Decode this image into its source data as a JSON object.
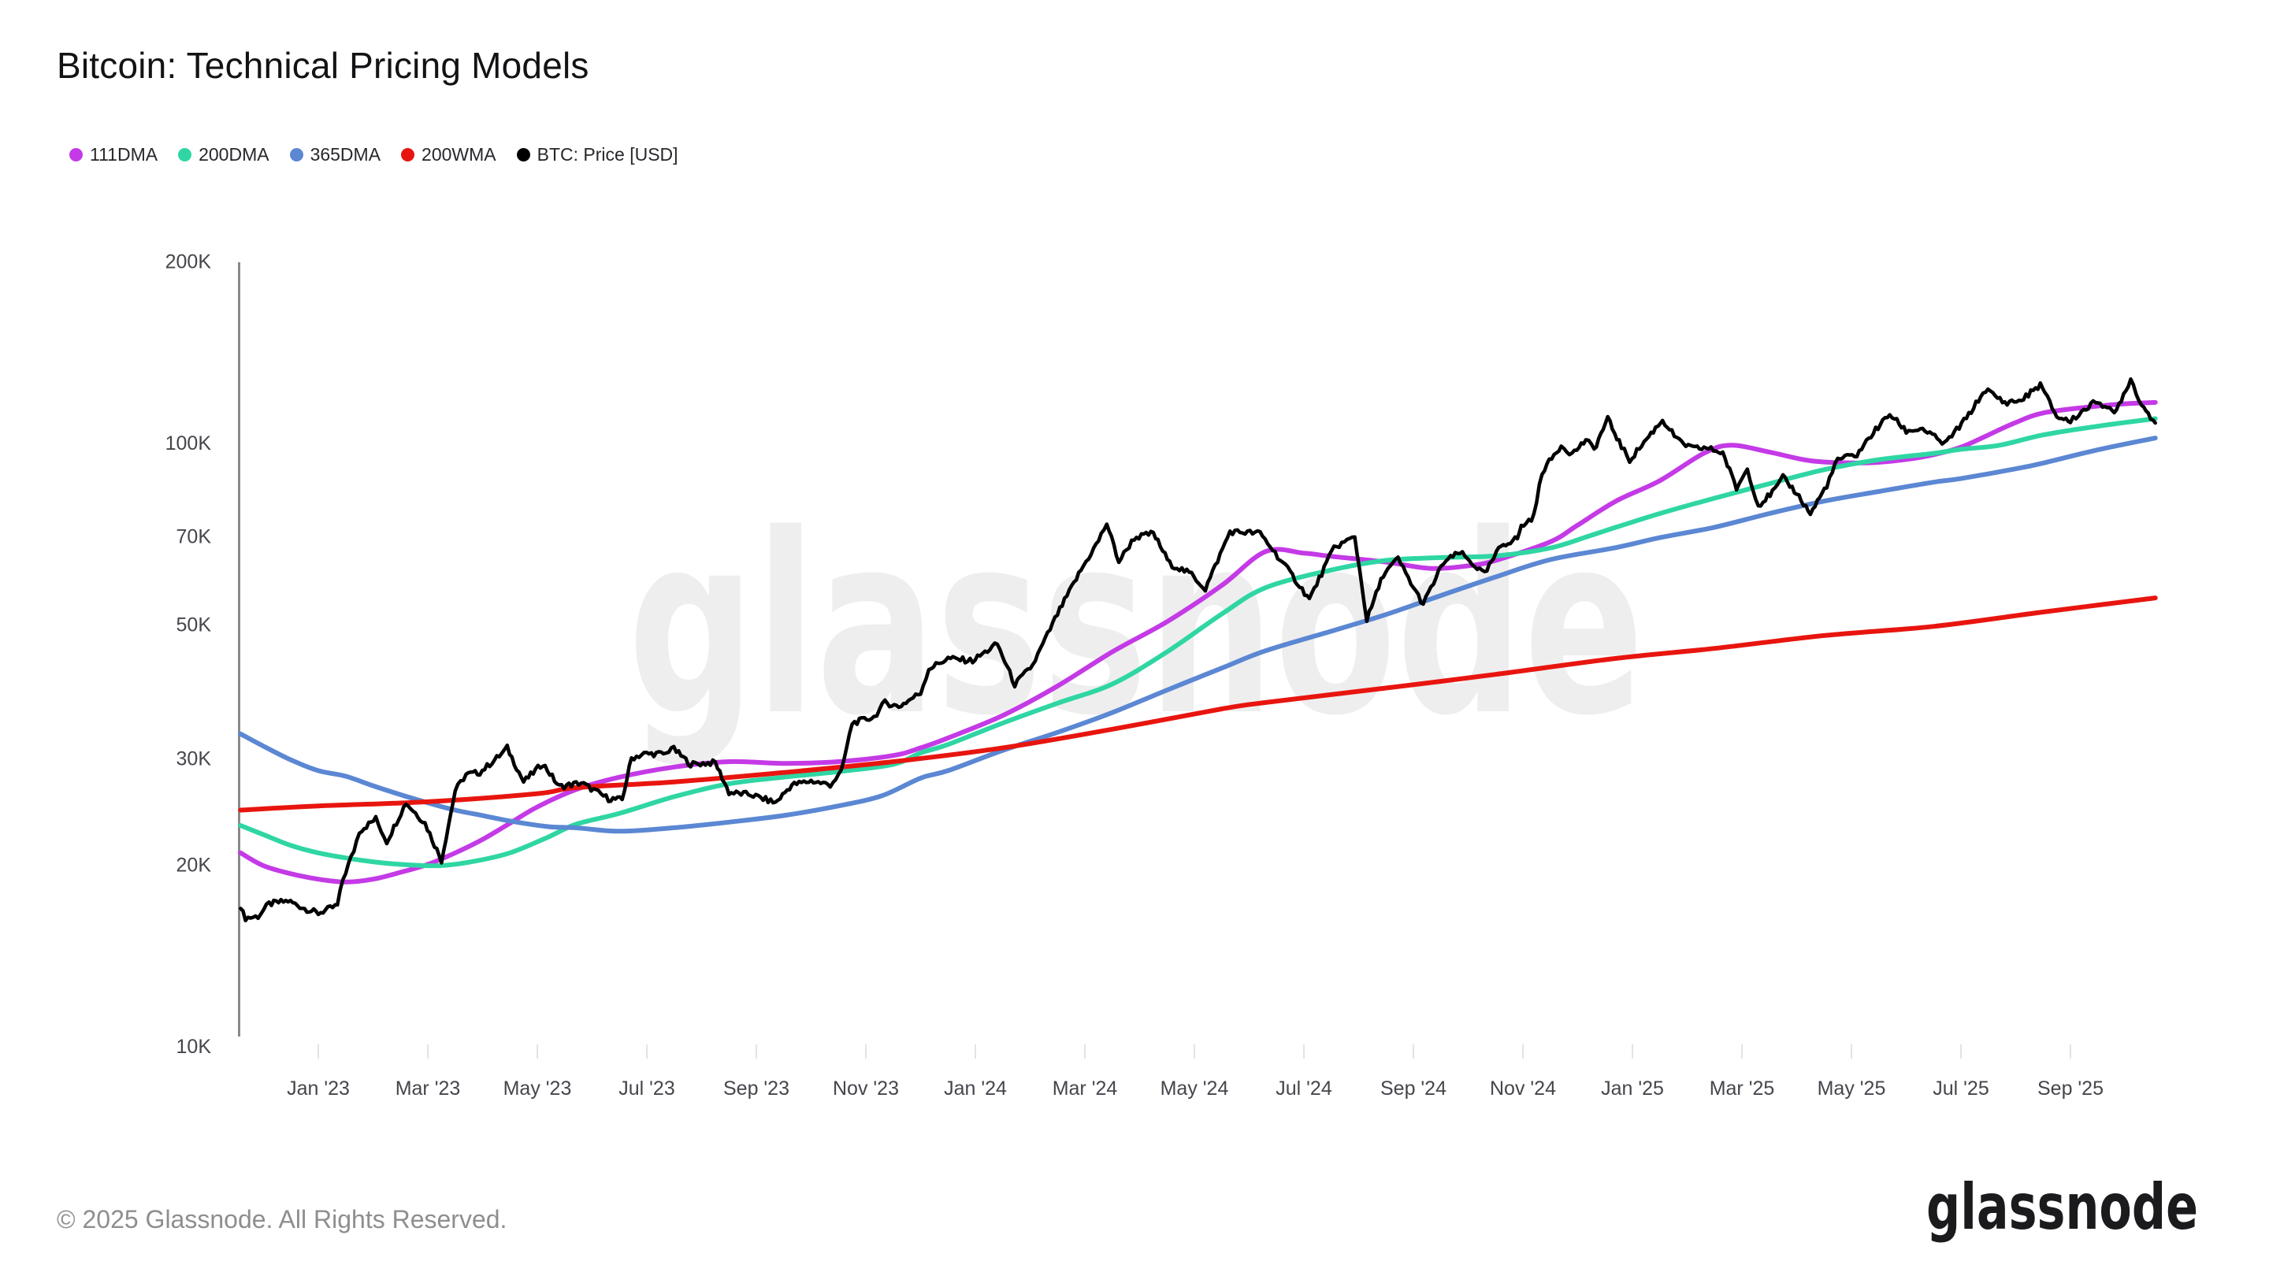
{
  "header": {
    "title": "Bitcoin: Technical Pricing Models"
  },
  "watermark": {
    "text": "glassnode"
  },
  "footer": {
    "copyright": "© 2025 Glassnode. All Rights Reserved.",
    "logo_text": "glassnode"
  },
  "chart_data": {
    "type": "line",
    "title": "Bitcoin: Technical Pricing Models",
    "legend_position": "top-left",
    "grid": "off",
    "y_axis": {
      "scale": "log",
      "unit": "USD",
      "value_unit": "thousands of USD",
      "range_k": [
        10,
        200
      ],
      "ticks": [
        {
          "value": 200,
          "label": "200K"
        },
        {
          "value": 100,
          "label": "100K"
        },
        {
          "value": 70,
          "label": "70K"
        },
        {
          "value": 50,
          "label": "50K"
        },
        {
          "value": 30,
          "label": "30K"
        },
        {
          "value": 20,
          "label": "20K"
        },
        {
          "value": 10,
          "label": "10K"
        }
      ]
    },
    "x_axis": {
      "unit": "months since 2023-01-01",
      "range_months": [
        -1.45,
        33.75
      ],
      "ticks": [
        {
          "m": 0,
          "label": "Jan '23"
        },
        {
          "m": 2,
          "label": "Mar '23"
        },
        {
          "m": 4,
          "label": "May '23"
        },
        {
          "m": 6,
          "label": "Jul '23"
        },
        {
          "m": 8,
          "label": "Sep '23"
        },
        {
          "m": 10,
          "label": "Nov '23"
        },
        {
          "m": 12,
          "label": "Jan '24"
        },
        {
          "m": 14,
          "label": "Mar '24"
        },
        {
          "m": 16,
          "label": "May '24"
        },
        {
          "m": 18,
          "label": "Jul '24"
        },
        {
          "m": 20,
          "label": "Sep '24"
        },
        {
          "m": 22,
          "label": "Nov '24"
        },
        {
          "m": 24,
          "label": "Jan '25"
        },
        {
          "m": 26,
          "label": "Mar '25"
        },
        {
          "m": 28,
          "label": "May '25"
        },
        {
          "m": 30,
          "label": "Jul '25"
        },
        {
          "m": 32,
          "label": "Sep '25"
        }
      ]
    },
    "series": [
      {
        "name": "111DMA",
        "color": "#c43ae6",
        "points": [
          [
            -1.42,
            20.9
          ],
          [
            -1.0,
            19.9
          ],
          [
            -0.5,
            19.3
          ],
          [
            0,
            18.9
          ],
          [
            0.5,
            18.7
          ],
          [
            1,
            18.9
          ],
          [
            1.5,
            19.4
          ],
          [
            2,
            20.0
          ],
          [
            2.5,
            20.9
          ],
          [
            3,
            22.0
          ],
          [
            3.5,
            23.4
          ],
          [
            4,
            24.9
          ],
          [
            4.7,
            26.6
          ],
          [
            5.5,
            27.9
          ],
          [
            6.5,
            29.0
          ],
          [
            7.5,
            29.6
          ],
          [
            8.5,
            29.4
          ],
          [
            9.5,
            29.6
          ],
          [
            10.5,
            30.3
          ],
          [
            11,
            31.2
          ],
          [
            11.5,
            32.4
          ],
          [
            12.5,
            35.3
          ],
          [
            13.5,
            39.5
          ],
          [
            14.5,
            45.0
          ],
          [
            15.5,
            50.5
          ],
          [
            16.5,
            58.0
          ],
          [
            17.3,
            66.0
          ],
          [
            18,
            65.6
          ],
          [
            18.5,
            64.8
          ],
          [
            19.5,
            63.4
          ],
          [
            20.3,
            61.9
          ],
          [
            21,
            62.5
          ],
          [
            21.5,
            63.8
          ],
          [
            22.5,
            68.5
          ],
          [
            23,
            73.0
          ],
          [
            23.7,
            80.0
          ],
          [
            24.5,
            86.5
          ],
          [
            25.3,
            96.0
          ],
          [
            25.8,
            99.0
          ],
          [
            26.5,
            96.5
          ],
          [
            27.3,
            93.2
          ],
          [
            28.3,
            92.6
          ],
          [
            29,
            93.8
          ],
          [
            29.5,
            95.5
          ],
          [
            30,
            98.3
          ],
          [
            30.5,
            103.0
          ],
          [
            31,
            108.0
          ],
          [
            31.5,
            112.0
          ],
          [
            32.3,
            114.5
          ],
          [
            33,
            116.0
          ],
          [
            33.55,
            116.6
          ]
        ]
      },
      {
        "name": "200DMA",
        "color": "#2fd6a3",
        "points": [
          [
            -1.42,
            23.2
          ],
          [
            -1,
            22.4
          ],
          [
            -0.5,
            21.5
          ],
          [
            0,
            20.9
          ],
          [
            0.5,
            20.5
          ],
          [
            1,
            20.2
          ],
          [
            1.5,
            20.0
          ],
          [
            2.2,
            19.9
          ],
          [
            2.8,
            20.2
          ],
          [
            3.5,
            20.9
          ],
          [
            4.2,
            22.2
          ],
          [
            4.7,
            23.3
          ],
          [
            5.5,
            24.3
          ],
          [
            6.5,
            25.9
          ],
          [
            7.5,
            27.2
          ],
          [
            8.5,
            27.9
          ],
          [
            9.5,
            28.5
          ],
          [
            10.5,
            29.3
          ],
          [
            11,
            30.6
          ],
          [
            11.5,
            31.6
          ],
          [
            12.5,
            34.3
          ],
          [
            13.5,
            37.0
          ],
          [
            14.5,
            39.8
          ],
          [
            15.5,
            45.0
          ],
          [
            16.5,
            52.0
          ],
          [
            17.3,
            57.5
          ],
          [
            18.5,
            61.5
          ],
          [
            19.5,
            63.8
          ],
          [
            20.5,
            64.5
          ],
          [
            21.5,
            64.9
          ],
          [
            22.5,
            66.9
          ],
          [
            23.2,
            70.0
          ],
          [
            23.7,
            72.4
          ],
          [
            24.5,
            76.3
          ],
          [
            25.5,
            80.9
          ],
          [
            26.5,
            85.5
          ],
          [
            27.5,
            90.2
          ],
          [
            28.5,
            93.7
          ],
          [
            29.5,
            96.0
          ],
          [
            30,
            97.5
          ],
          [
            30.7,
            99.0
          ],
          [
            31.5,
            103.0
          ],
          [
            32.5,
            106.5
          ],
          [
            33.55,
            109.6
          ]
        ]
      },
      {
        "name": "365DMA",
        "color": "#5b87d3",
        "points": [
          [
            -1.42,
            32.9
          ],
          [
            -1,
            31.4
          ],
          [
            -0.5,
            29.8
          ],
          [
            0,
            28.6
          ],
          [
            0.5,
            28.0
          ],
          [
            1,
            27.0
          ],
          [
            1.5,
            26.1
          ],
          [
            2,
            25.3
          ],
          [
            2.5,
            24.6
          ],
          [
            3,
            24.1
          ],
          [
            3.5,
            23.6
          ],
          [
            4.2,
            23.1
          ],
          [
            4.7,
            23.0
          ],
          [
            5.5,
            22.7
          ],
          [
            6.5,
            23.0
          ],
          [
            7.5,
            23.5
          ],
          [
            8.5,
            24.1
          ],
          [
            9.5,
            25.0
          ],
          [
            10.3,
            26.0
          ],
          [
            11,
            27.8
          ],
          [
            11.5,
            28.6
          ],
          [
            12.5,
            30.9
          ],
          [
            13.5,
            33.1
          ],
          [
            14.5,
            35.7
          ],
          [
            15.5,
            38.9
          ],
          [
            16.5,
            42.3
          ],
          [
            17.3,
            45.2
          ],
          [
            18.5,
            48.7
          ],
          [
            19.5,
            51.9
          ],
          [
            20.5,
            55.8
          ],
          [
            21.5,
            59.9
          ],
          [
            22.5,
            64.0
          ],
          [
            23.7,
            67.0
          ],
          [
            24.5,
            69.6
          ],
          [
            25.5,
            72.4
          ],
          [
            26.5,
            76.3
          ],
          [
            27.5,
            80.0
          ],
          [
            28.5,
            83.0
          ],
          [
            29.5,
            86.0
          ],
          [
            30,
            87.2
          ],
          [
            31,
            90.5
          ],
          [
            31.5,
            92.5
          ],
          [
            32.5,
            97.3
          ],
          [
            33.55,
            101.8
          ]
        ]
      },
      {
        "name": "200WMA",
        "color": "#e8150f",
        "points": [
          [
            -1.42,
            24.6
          ],
          [
            0,
            25.0
          ],
          [
            2,
            25.4
          ],
          [
            4,
            26.2
          ],
          [
            4.7,
            26.8
          ],
          [
            6.5,
            27.4
          ],
          [
            8.5,
            28.4
          ],
          [
            10.5,
            29.6
          ],
          [
            12.5,
            31.2
          ],
          [
            14.5,
            33.5
          ],
          [
            16.5,
            36.2
          ],
          [
            17.3,
            37.1
          ],
          [
            19.5,
            39.2
          ],
          [
            21.5,
            41.3
          ],
          [
            23.7,
            43.9
          ],
          [
            25.5,
            45.6
          ],
          [
            27.5,
            47.9
          ],
          [
            29.5,
            49.6
          ],
          [
            31.5,
            52.4
          ],
          [
            33.55,
            55.3
          ]
        ]
      },
      {
        "name": "BTC: Price [USD]",
        "color": "#000000",
        "points": [
          [
            -1.42,
            16.9
          ],
          [
            -1.33,
            16.3
          ],
          [
            -1.1,
            16.4
          ],
          [
            -0.9,
            17.2
          ],
          [
            -0.55,
            17.4
          ],
          [
            -0.25,
            16.9
          ],
          [
            0.0,
            16.6
          ],
          [
            0.35,
            17.1
          ],
          [
            0.45,
            18.9
          ],
          [
            0.65,
            21.1
          ],
          [
            0.75,
            22.7
          ],
          [
            1.05,
            23.8
          ],
          [
            1.25,
            21.8
          ],
          [
            1.6,
            25.3
          ],
          [
            1.95,
            23.4
          ],
          [
            2.25,
            20.3
          ],
          [
            2.5,
            26.5
          ],
          [
            2.7,
            28.2
          ],
          [
            2.95,
            28.4
          ],
          [
            3.35,
            30.5
          ],
          [
            3.45,
            31.2
          ],
          [
            3.75,
            27.4
          ],
          [
            4.1,
            29.4
          ],
          [
            4.4,
            26.9
          ],
          [
            4.8,
            27.3
          ],
          [
            5.3,
            25.7
          ],
          [
            5.55,
            25.6
          ],
          [
            5.72,
            30.0
          ],
          [
            5.95,
            30.5
          ],
          [
            6.35,
            30.5
          ],
          [
            6.45,
            31.3
          ],
          [
            6.8,
            29.3
          ],
          [
            7.25,
            29.5
          ],
          [
            7.5,
            26.3
          ],
          [
            7.9,
            26.1
          ],
          [
            8.35,
            25.3
          ],
          [
            8.65,
            27.1
          ],
          [
            9.0,
            27.5
          ],
          [
            9.35,
            27.1
          ],
          [
            9.55,
            28.4
          ],
          [
            9.75,
            34.3
          ],
          [
            10.15,
            35.1
          ],
          [
            10.35,
            37.1
          ],
          [
            10.6,
            36.5
          ],
          [
            11.0,
            38.5
          ],
          [
            11.15,
            42.2
          ],
          [
            11.5,
            43.9
          ],
          [
            11.95,
            43.5
          ],
          [
            12.4,
            46.4
          ],
          [
            12.72,
            39.7
          ],
          [
            13.05,
            42.8
          ],
          [
            13.5,
            52.0
          ],
          [
            13.93,
            61.5
          ],
          [
            14.25,
            68.8
          ],
          [
            14.4,
            73.5
          ],
          [
            14.62,
            63.5
          ],
          [
            14.9,
            69.5
          ],
          [
            15.25,
            70.8
          ],
          [
            15.55,
            63.0
          ],
          [
            15.95,
            60.5
          ],
          [
            16.2,
            57.2
          ],
          [
            16.65,
            71.2
          ],
          [
            17.2,
            70.8
          ],
          [
            17.75,
            60.9
          ],
          [
            18.1,
            55.0
          ],
          [
            18.55,
            67.0
          ],
          [
            18.93,
            69.8
          ],
          [
            19.15,
            50.8
          ],
          [
            19.45,
            60.5
          ],
          [
            19.72,
            64.2
          ],
          [
            20.0,
            57.5
          ],
          [
            20.18,
            54.0
          ],
          [
            20.55,
            63.3
          ],
          [
            20.85,
            65.8
          ],
          [
            21.3,
            60.5
          ],
          [
            21.6,
            67.5
          ],
          [
            21.9,
            69.5
          ],
          [
            21.97,
            72.5
          ],
          [
            22.2,
            75.5
          ],
          [
            22.35,
            89.5
          ],
          [
            22.7,
            99.0
          ],
          [
            22.9,
            95.8
          ],
          [
            23.15,
            101.0
          ],
          [
            23.3,
            97.5
          ],
          [
            23.55,
            109.5
          ],
          [
            23.8,
            98.5
          ],
          [
            23.95,
            93.5
          ],
          [
            24.3,
            102.5
          ],
          [
            24.55,
            109.0
          ],
          [
            24.85,
            100.5
          ],
          [
            25.1,
            97.8
          ],
          [
            25.35,
            98.0
          ],
          [
            25.65,
            96.2
          ],
          [
            25.9,
            84.0
          ],
          [
            26.1,
            90.5
          ],
          [
            26.3,
            78.6
          ],
          [
            26.6,
            83.5
          ],
          [
            26.75,
            87.5
          ],
          [
            27.0,
            82.5
          ],
          [
            27.25,
            76.2
          ],
          [
            27.55,
            85.0
          ],
          [
            27.75,
            93.8
          ],
          [
            28.1,
            95.5
          ],
          [
            28.4,
            104.0
          ],
          [
            28.7,
            111.5
          ],
          [
            29.0,
            104.5
          ],
          [
            29.3,
            105.5
          ],
          [
            29.7,
            99.4
          ],
          [
            30.1,
            109.8
          ],
          [
            30.45,
            122.5
          ],
          [
            30.8,
            116.5
          ],
          [
            31.1,
            117.5
          ],
          [
            31.45,
            124.8
          ],
          [
            31.75,
            110.5
          ],
          [
            32.0,
            108.5
          ],
          [
            32.2,
            112.5
          ],
          [
            32.5,
            117.5
          ],
          [
            32.8,
            111.5
          ],
          [
            33.1,
            127.5
          ],
          [
            33.3,
            115.5
          ],
          [
            33.42,
            112.0
          ],
          [
            33.55,
            107.8
          ]
        ]
      }
    ]
  }
}
